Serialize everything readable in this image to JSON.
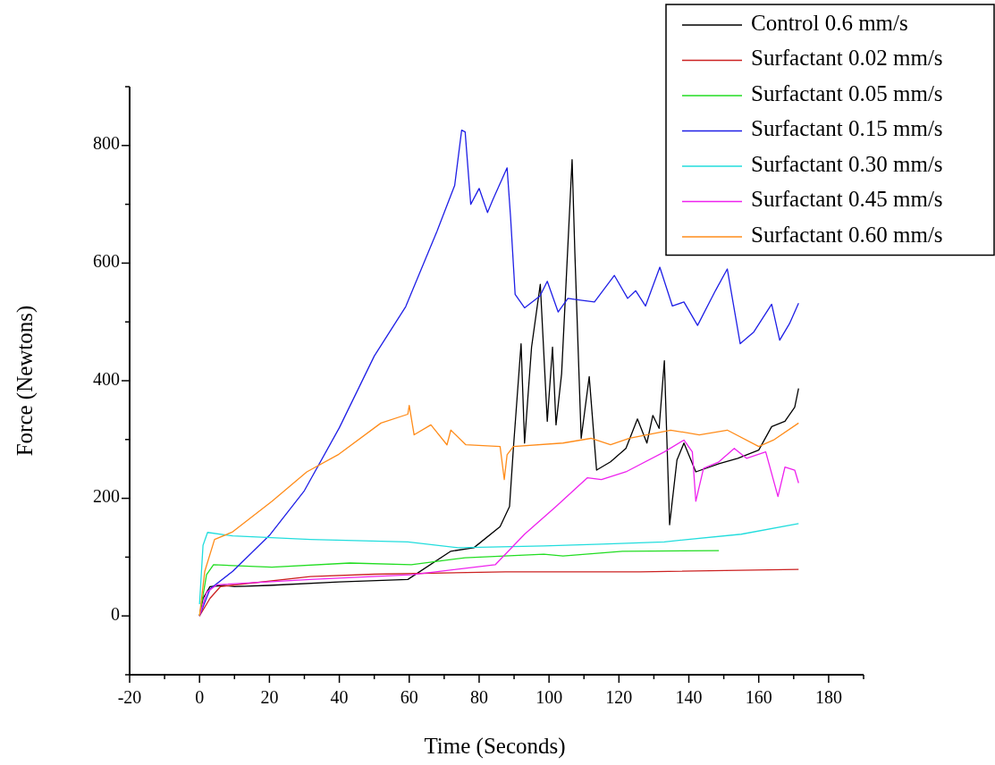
{
  "chart_data": {
    "type": "line",
    "xlabel": "Time (Seconds)",
    "ylabel": "Force (Newtons)",
    "xlim": [
      -20,
      190
    ],
    "ylim": [
      -100,
      900
    ],
    "xticks": [
      -20,
      {
        "value": -10,
        "label": null
      },
      0,
      {
        "value": 10,
        "label": null
      },
      20,
      {
        "value": 30,
        "label": null
      },
      40,
      {
        "value": 50,
        "label": null
      },
      60,
      {
        "value": 70,
        "label": null
      },
      80,
      {
        "value": 90,
        "label": null
      },
      100,
      {
        "value": 110,
        "label": null
      },
      120,
      {
        "value": 130,
        "label": null
      },
      140,
      {
        "value": 150,
        "label": null
      },
      160,
      {
        "value": 170,
        "label": null
      },
      180,
      {
        "value": 190,
        "label": null
      }
    ],
    "yticks": [
      {
        "value": -100,
        "label": null
      },
      0,
      {
        "value": 100,
        "label": null
      },
      200,
      {
        "value": 300,
        "label": null
      },
      400,
      {
        "value": 500,
        "label": null
      },
      600,
      {
        "value": 700,
        "label": null
      },
      800,
      {
        "value": 900,
        "label": null
      }
    ],
    "grid": false,
    "legend": "top right",
    "marker": "none",
    "line_style": "solid",
    "series": [
      {
        "name": "Control 0.6 mm/s",
        "color": "#000000",
        "x": [
          0,
          1,
          3,
          7,
          10,
          20,
          40,
          59.6,
          71.9,
          78.5,
          86,
          88.7,
          89.8,
          92,
          93,
          95,
          97.5,
          99.5,
          101,
          102,
          103.6,
          106.6,
          107.4,
          109.2,
          111.5,
          113.6,
          117.6,
          122,
          125.3,
          128,
          129.7,
          131.5,
          133,
          134.5,
          136.6,
          138.6,
          142,
          148.6,
          154,
          160,
          163.7,
          167.5,
          170.3,
          171.4
        ],
        "values": [
          0,
          30,
          50,
          52,
          50,
          52,
          58,
          62,
          110,
          116,
          152,
          186,
          285,
          463,
          294,
          457,
          564,
          331,
          457,
          325,
          412,
          776,
          616,
          302,
          407,
          248,
          262,
          285,
          335,
          294,
          341,
          319,
          434,
          155,
          265,
          294,
          245,
          259,
          268,
          282,
          322,
          331,
          355,
          387
        ]
      },
      {
        "name": "Surfactant 0.02 mm/s",
        "color": "#cc2222",
        "x": [
          0,
          3,
          6,
          31.7,
          50,
          87.5,
          126,
          171.4
        ],
        "values": [
          0,
          30,
          50,
          67,
          71,
          75,
          75,
          79
        ]
      },
      {
        "name": "Surfactant 0.05 mm/s",
        "color": "#22dd22",
        "x": [
          0,
          2,
          4,
          20.7,
          43,
          60.6,
          76,
          98.5,
          104,
          121,
          148.6
        ],
        "values": [
          0,
          70,
          87,
          83,
          90,
          87,
          99,
          105,
          102,
          110,
          111
        ]
      },
      {
        "name": "Surfactant 0.15 mm/s",
        "color": "#1f1fe6",
        "x": [
          0,
          3,
          9.5,
          20,
          30,
          40,
          50,
          59,
          68,
          73,
          75,
          76,
          77.6,
          80,
          82.4,
          84,
          88,
          89,
          90.3,
          93,
          97.4,
          99.5,
          102.6,
          105.4,
          109,
          113,
          118.7,
          122.5,
          124.8,
          127.6,
          131.7,
          135.3,
          138.6,
          142.5,
          147.6,
          151,
          154.7,
          158.6,
          163.7,
          166,
          168.8,
          171.4
        ],
        "values": [
          0,
          46,
          76,
          137,
          213,
          320,
          442,
          526,
          655,
          732,
          826,
          823,
          700,
          727,
          686,
          709,
          762,
          678,
          547,
          524,
          544,
          569,
          517,
          540,
          537,
          534,
          579,
          540,
          553,
          527,
          593,
          527,
          534,
          494,
          553,
          590,
          463,
          483,
          530,
          469,
          497,
          532
        ]
      },
      {
        "name": "Surfactant 0.30 mm/s",
        "color": "#22dddd",
        "x": [
          0,
          1,
          2.3,
          9.5,
          31.7,
          59.6,
          74,
          98.5,
          115,
          133,
          155,
          171.4
        ],
        "values": [
          20,
          120,
          142,
          136,
          130,
          126,
          116,
          119,
          122,
          126,
          139,
          157
        ]
      },
      {
        "name": "Surfactant 0.45 mm/s",
        "color": "#ee22ee",
        "x": [
          0,
          2,
          5,
          31.7,
          60.6,
          84.6,
          93,
          102,
          111,
          115,
          122,
          133,
          138.6,
          141,
          142,
          144.2,
          148.6,
          153,
          156.5,
          162,
          165.5,
          167.5,
          170.3,
          171.4
        ],
        "values": [
          0,
          40,
          53,
          62,
          70,
          87,
          139,
          186,
          235,
          232,
          245,
          279,
          299,
          279,
          195,
          251,
          262,
          285,
          268,
          279,
          203,
          253,
          248,
          226
        ]
      },
      {
        "name": "Surfactant 0.60 mm/s",
        "color": "#ff8c1a",
        "x": [
          0,
          1.5,
          4.3,
          9.5,
          20.7,
          30.7,
          39.6,
          51.9,
          59.6,
          60,
          61.4,
          66.2,
          70.8,
          71.9,
          76.2,
          86,
          87.2,
          88,
          89.8,
          104,
          112,
          117.6,
          123,
          134.8,
          143,
          151,
          160,
          164.2,
          171.4
        ],
        "values": [
          0,
          76,
          130,
          143,
          195,
          245,
          274,
          328,
          343,
          358,
          308,
          325,
          291,
          316,
          291,
          288,
          232,
          274,
          288,
          294,
          302,
          291,
          302,
          316,
          308,
          316,
          288,
          299,
          328
        ]
      }
    ]
  }
}
